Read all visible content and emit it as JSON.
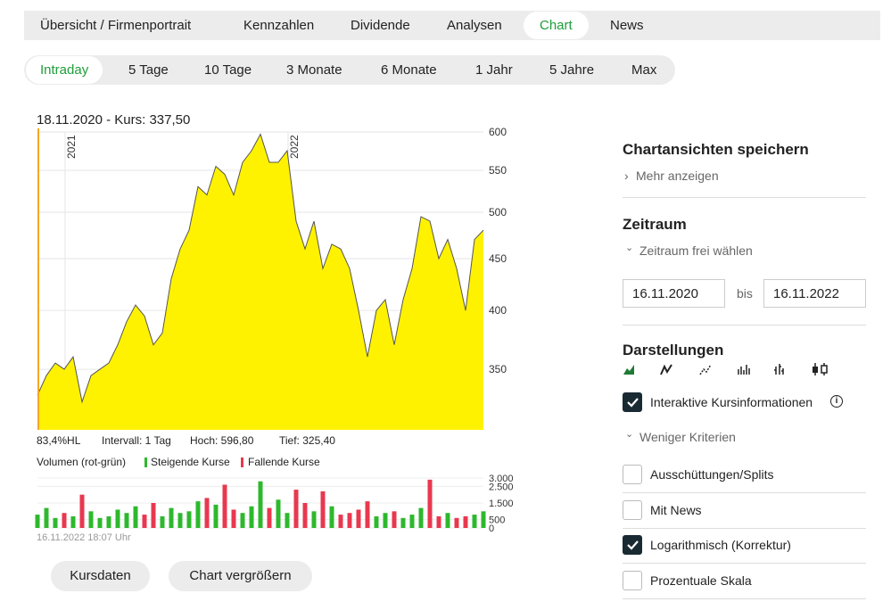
{
  "tabs": [
    "Übersicht / Firmenportrait",
    "Kennzahlen",
    "Dividende",
    "Analysen",
    "Chart",
    "News"
  ],
  "active_tab": 4,
  "periods": [
    "Intraday",
    "5 Tage",
    "10 Tage",
    "3 Monate",
    "6 Monate",
    "1 Jahr",
    "5 Jahre",
    "Max"
  ],
  "active_period": 0,
  "chart_data": {
    "type": "area",
    "title": "18.11.2020  -  Kurs: 337,50",
    "log_scale": true,
    "color": "#fff200",
    "line_color": "#555555",
    "x": [
      0,
      1,
      2,
      3,
      4,
      5,
      6,
      7,
      8,
      9,
      10,
      11,
      12,
      13,
      14,
      15,
      16,
      17,
      18,
      19,
      20,
      21,
      22,
      23,
      24,
      25,
      26,
      27,
      28,
      29,
      30,
      31,
      32,
      33,
      34,
      35,
      36,
      37,
      38,
      39,
      40,
      41,
      42,
      43,
      44,
      45,
      46,
      47,
      48,
      49,
      50
    ],
    "values": [
      330,
      345,
      355,
      350,
      360,
      325,
      345,
      350,
      355,
      370,
      390,
      405,
      395,
      370,
      380,
      430,
      460,
      480,
      530,
      520,
      555,
      545,
      520,
      560,
      575,
      597,
      560,
      560,
      575,
      490,
      460,
      490,
      440,
      465,
      460,
      440,
      400,
      360,
      400,
      410,
      370,
      410,
      440,
      495,
      490,
      450,
      470,
      440,
      400,
      470,
      480
    ],
    "xlim": [
      0,
      50
    ],
    "xticks": [
      {
        "value": 3.1,
        "label": "2021"
      },
      {
        "value": 28.1,
        "label": "2022"
      }
    ],
    "ylim": [
      305,
      600
    ],
    "yticks": [
      350,
      400,
      450,
      500,
      550,
      600
    ],
    "grid": true,
    "stats": [
      "83,4%HL",
      "Intervall: 1 Tag",
      "Hoch: 596,80",
      "Tief: 325,40"
    ],
    "volume": {
      "label": "Volumen (rot-grün)",
      "up_name": "Steigende Kurse",
      "up_color": "#2db82d",
      "down_name": "Fallende Kurse",
      "down_color": "#e8384f",
      "values": [
        800,
        1200,
        600,
        900,
        700,
        2000,
        1000,
        600,
        700,
        1100,
        900,
        1300,
        800,
        1500,
        700,
        1200,
        900,
        1000,
        1600,
        1800,
        1400,
        2600,
        1100,
        900,
        1300,
        2800,
        1200,
        1700,
        900,
        2300,
        1500,
        1000,
        2200,
        1300,
        800,
        900,
        1100,
        1600,
        700,
        900,
        1000,
        600,
        800,
        1200,
        2900,
        700,
        900,
        600,
        700,
        800,
        1000
      ],
      "ylim": [
        0,
        3000
      ],
      "yticks": [
        0,
        500,
        {
          "value": 1500,
          "label": "1.500"
        },
        {
          "value": 2500,
          "label": "2.500"
        },
        {
          "value": 3000,
          "label": "3.000"
        }
      ]
    },
    "timestamp": "16.11.2022 18:07 Uhr"
  },
  "buttons": [
    "Kursdaten",
    "Chart vergrößern"
  ],
  "sidebar": {
    "save_title": "Chartansichten speichern",
    "more": "Mehr anzeigen",
    "period_title": "Zeitraum",
    "free_period": "Zeitraum frei wählen",
    "from": "16.11.2020",
    "to_label": "bis",
    "to": "16.11.2022",
    "display_title": "Darstellungen",
    "options": [
      {
        "label": "Interaktive Kursinformationen",
        "checked": true
      }
    ],
    "less": "Weniger Kriterien",
    "criteria": [
      {
        "label": "Ausschüttungen/Splits",
        "checked": false
      },
      {
        "label": "Mit News",
        "checked": false
      },
      {
        "label": "Logarithmisch (Korrektur)",
        "checked": true
      },
      {
        "label": "Prozentuale Skala",
        "checked": false
      }
    ]
  }
}
